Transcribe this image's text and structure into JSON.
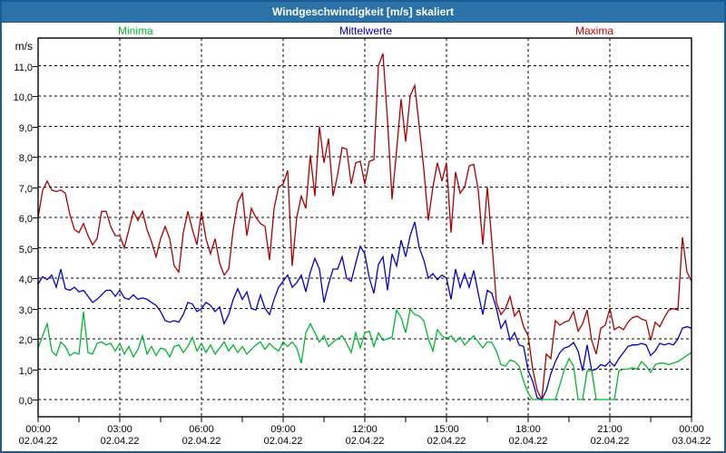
{
  "window": {
    "title": "Windgeschwindigkeit [m/s] skaliert"
  },
  "legend": [
    {
      "label": "Minima",
      "color": "#00b62e"
    },
    {
      "label": "Mittelwerte",
      "color": "#0000c8"
    },
    {
      "label": "Maxima",
      "color": "#c80000"
    }
  ],
  "y_axis": {
    "unit_label": "m/s",
    "ticks": [
      {
        "value": 0,
        "label": "0,0"
      },
      {
        "value": 1,
        "label": "1,0"
      },
      {
        "value": 2,
        "label": "2,0"
      },
      {
        "value": 3,
        "label": "3,0"
      },
      {
        "value": 4,
        "label": "4,0"
      },
      {
        "value": 5,
        "label": "5,0"
      },
      {
        "value": 6,
        "label": "6,0"
      },
      {
        "value": 7,
        "label": "7,0"
      },
      {
        "value": 8,
        "label": "8,0"
      },
      {
        "value": 9,
        "label": "9,0"
      },
      {
        "value": 10,
        "label": "10,0"
      },
      {
        "value": 11,
        "label": "11,0"
      }
    ]
  },
  "x_axis": {
    "ticks": [
      {
        "hour": 0,
        "time": "00:00",
        "date": "02.04.22"
      },
      {
        "hour": 3,
        "time": "03:00",
        "date": "02.04.22"
      },
      {
        "hour": 6,
        "time": "06:00",
        "date": "02.04.22"
      },
      {
        "hour": 9,
        "time": "09:00",
        "date": "02.04.22"
      },
      {
        "hour": 12,
        "time": "12:00",
        "date": "02.04.22"
      },
      {
        "hour": 15,
        "time": "15:00",
        "date": "02.04.22"
      },
      {
        "hour": 18,
        "time": "18:00",
        "date": "02.04.22"
      },
      {
        "hour": 21,
        "time": "21:00",
        "date": "02.04.22"
      },
      {
        "hour": 24,
        "time": "00:00",
        "date": "03.04.22"
      }
    ]
  },
  "chart_data": {
    "type": "line",
    "title": "Windgeschwindigkeit [m/s] skaliert",
    "ylabel": "m/s",
    "ylim": [
      0,
      11.9
    ],
    "x_start": "02.04.22 00:00",
    "x_end": "03.04.22 00:00",
    "step_minutes": 10,
    "grid": true,
    "ygrid": [
      0,
      1,
      2,
      3,
      4,
      5,
      6,
      7,
      8,
      9,
      10,
      11
    ],
    "xgrid_hours": [
      3,
      6,
      9,
      12,
      15,
      18,
      21
    ],
    "minor_tick_minutes": 90,
    "legend_position": "top",
    "series": [
      {
        "name": "Maxima",
        "color": "#aa0000",
        "values": [
          6.0,
          6.9,
          7.2,
          6.9,
          6.85,
          6.9,
          6.8,
          6.1,
          5.6,
          5.5,
          5.8,
          5.4,
          5.1,
          5.3,
          6.2,
          6.2,
          5.7,
          5.4,
          5.4,
          5.0,
          5.6,
          6.2,
          5.9,
          6.2,
          5.6,
          5.2,
          4.7,
          5.3,
          5.7,
          5.3,
          4.4,
          4.2,
          5.5,
          6.2,
          5.6,
          5.1,
          6.2,
          5.3,
          4.8,
          5.3,
          4.5,
          4.1,
          4.3,
          5.6,
          6.5,
          6.8,
          5.4,
          6.3,
          6.0,
          5.8,
          5.7,
          4.6,
          6.3,
          7.0,
          7.1,
          7.55,
          4.4,
          6.0,
          6.7,
          6.3,
          8.05,
          6.7,
          9.0,
          7.8,
          8.6,
          6.7,
          7.4,
          8.3,
          8.25,
          7.1,
          7.8,
          7.85,
          7.1,
          7.85,
          7.9,
          11.0,
          11.4,
          9.2,
          6.6,
          8.2,
          9.9,
          8.5,
          10.0,
          10.35,
          9.0,
          7.6,
          5.9,
          7.0,
          7.8,
          7.2,
          7.8,
          5.5,
          7.5,
          6.8,
          7.0,
          7.7,
          7.75,
          6.9,
          5.1,
          7.0,
          5.2,
          3.2,
          2.8,
          3.0,
          3.4,
          2.75,
          2.95,
          2.4,
          2.1,
          1.0,
          0.3,
          0.0,
          1.5,
          1.35,
          2.6,
          2.45,
          2.55,
          2.6,
          2.9,
          2.25,
          2.5,
          2.95,
          1.95,
          1.5,
          2.35,
          2.45,
          3.0,
          2.3,
          2.4,
          2.3,
          2.55,
          2.7,
          2.75,
          2.65,
          2.6,
          1.95,
          2.55,
          2.4,
          2.7,
          2.95,
          3.0,
          2.95,
          5.35,
          4.2,
          3.9
        ]
      },
      {
        "name": "Mittelwerte",
        "color": "#0000c8",
        "values": [
          3.8,
          4.05,
          3.95,
          4.1,
          3.7,
          4.3,
          3.65,
          3.6,
          3.7,
          3.55,
          3.6,
          3.4,
          3.2,
          3.3,
          3.45,
          3.6,
          3.6,
          3.4,
          3.6,
          3.35,
          3.3,
          3.45,
          3.3,
          3.35,
          3.3,
          3.2,
          3.1,
          2.9,
          2.6,
          2.55,
          2.6,
          2.55,
          2.8,
          3.2,
          3.15,
          2.9,
          3.0,
          3.2,
          3.1,
          2.9,
          3.05,
          2.5,
          2.8,
          3.3,
          3.65,
          3.3,
          3.55,
          3.0,
          2.95,
          3.45,
          3.0,
          2.8,
          3.3,
          3.7,
          3.9,
          4.1,
          3.7,
          3.85,
          4.1,
          3.55,
          4.2,
          4.65,
          4.3,
          3.2,
          3.8,
          4.3,
          4.3,
          4.7,
          4.0,
          3.9,
          4.5,
          5.05,
          4.8,
          4.0,
          3.5,
          4.45,
          4.7,
          3.6,
          4.8,
          4.4,
          5.25,
          4.7,
          5.4,
          5.85,
          5.0,
          4.6,
          4.0,
          4.15,
          3.95,
          4.1,
          4.0,
          3.3,
          4.3,
          3.7,
          4.15,
          3.7,
          4.25,
          3.5,
          2.8,
          3.6,
          3.5,
          3.0,
          2.35,
          2.6,
          1.95,
          2.2,
          1.8,
          1.75,
          0.95,
          0.6,
          0.05,
          0.0,
          0.3,
          0.85,
          1.25,
          1.55,
          1.7,
          1.75,
          1.88,
          1.6,
          0.95,
          1.8,
          0.95,
          1.0,
          1.15,
          1.1,
          1.25,
          1.1,
          1.35,
          1.55,
          1.75,
          1.8,
          1.8,
          1.85,
          1.8,
          1.45,
          1.6,
          1.85,
          1.8,
          1.85,
          1.8,
          2.0,
          2.35,
          2.4,
          2.35
        ]
      },
      {
        "name": "Minima",
        "color": "#00b62e",
        "values": [
          1.7,
          2.1,
          2.5,
          1.6,
          1.45,
          1.9,
          1.75,
          1.45,
          1.55,
          1.5,
          2.9,
          1.55,
          1.5,
          1.85,
          1.9,
          1.8,
          1.85,
          1.6,
          1.85,
          1.5,
          1.75,
          1.4,
          1.65,
          2.1,
          1.5,
          1.75,
          1.45,
          1.7,
          1.65,
          1.4,
          1.75,
          1.8,
          1.55,
          1.75,
          2.05,
          1.6,
          1.85,
          1.55,
          1.8,
          1.5,
          1.7,
          1.9,
          1.6,
          1.8,
          1.55,
          1.75,
          1.5,
          1.65,
          1.8,
          1.9,
          1.65,
          1.85,
          1.7,
          1.6,
          1.9,
          1.75,
          1.9,
          1.7,
          1.2,
          2.2,
          2.5,
          2.2,
          1.9,
          2.1,
          1.75,
          1.9,
          2.0,
          2.1,
          1.85,
          1.55,
          2.2,
          1.7,
          2.2,
          2.25,
          1.75,
          2.2,
          1.95,
          2.0,
          2.05,
          2.95,
          2.7,
          2.2,
          2.98,
          2.8,
          2.75,
          2.6,
          2.0,
          1.6,
          2.3,
          2.1,
          2.0,
          2.1,
          1.9,
          2.05,
          1.8,
          1.95,
          2.1,
          1.9,
          1.7,
          1.9,
          1.88,
          1.6,
          1.15,
          1.1,
          1.3,
          1.25,
          1.1,
          0.6,
          0.2,
          0.0,
          0.0,
          0.0,
          0.0,
          0.0,
          0.0,
          0.5,
          1.0,
          1.35,
          1.1,
          0.0,
          0.0,
          0.95,
          0.95,
          0.0,
          0.0,
          0.0,
          0.0,
          0.0,
          0.95,
          1.0,
          1.0,
          1.05,
          1.0,
          1.25,
          1.1,
          0.9,
          1.15,
          1.2,
          1.2,
          1.15,
          1.2,
          1.25,
          1.35,
          1.45,
          1.55
        ]
      }
    ]
  }
}
